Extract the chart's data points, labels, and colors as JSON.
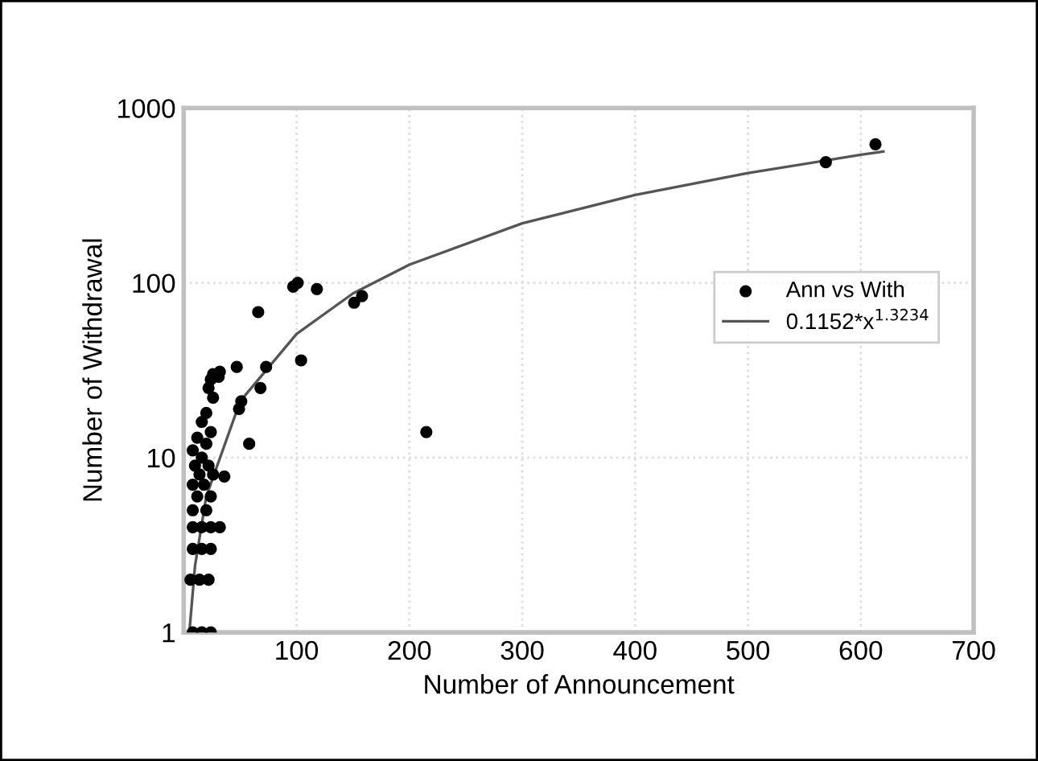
{
  "chart_data": {
    "type": "scatter",
    "xlabel": "Number of Announcement",
    "ylabel": "Number of Withdrawal",
    "xlim": [
      0,
      700
    ],
    "xticks": [
      100,
      200,
      300,
      400,
      500,
      600,
      700
    ],
    "ylim": [
      1,
      1000
    ],
    "yticks": [
      1,
      10,
      100,
      1000
    ],
    "log": "y",
    "grid": true,
    "legend": "right",
    "marker": "circle",
    "series": [
      {
        "name": "Ann vs With",
        "color": "#000000",
        "x": [
          8,
          16,
          24,
          6,
          14,
          22,
          8,
          16,
          24,
          8,
          16,
          24,
          32,
          8,
          20,
          12,
          24,
          8,
          18,
          14,
          26,
          10,
          22,
          16,
          8,
          20,
          12,
          24,
          16,
          20,
          26,
          22,
          24,
          26,
          31,
          32,
          36,
          47,
          49,
          51,
          58,
          66,
          68,
          73,
          97,
          101,
          104,
          118,
          151,
          158,
          215,
          569,
          613
        ],
        "values": [
          1,
          1,
          1,
          2,
          2,
          2,
          3,
          3,
          3,
          4,
          4,
          4,
          4,
          5,
          5,
          6,
          6,
          7,
          7,
          8,
          8,
          9,
          9,
          10,
          11,
          12,
          13,
          14,
          16,
          18,
          22,
          25,
          28,
          30,
          29,
          31,
          7.8,
          33,
          19,
          21,
          12,
          68,
          25,
          33,
          95,
          100,
          36,
          92,
          77,
          84,
          14,
          490,
          620
        ]
      },
      {
        "name": "0.1152*x$^{1.3234}$",
        "color": "#555555",
        "type": "line",
        "marker": "none",
        "line_style": "solid",
        "x": [
          5,
          10,
          20,
          50,
          100,
          150,
          200,
          300,
          400,
          500,
          600,
          620
        ],
        "values": [
          1,
          2.4,
          6,
          21,
          51,
          87,
          127,
          219,
          318,
          425,
          540,
          564
        ]
      }
    ]
  }
}
